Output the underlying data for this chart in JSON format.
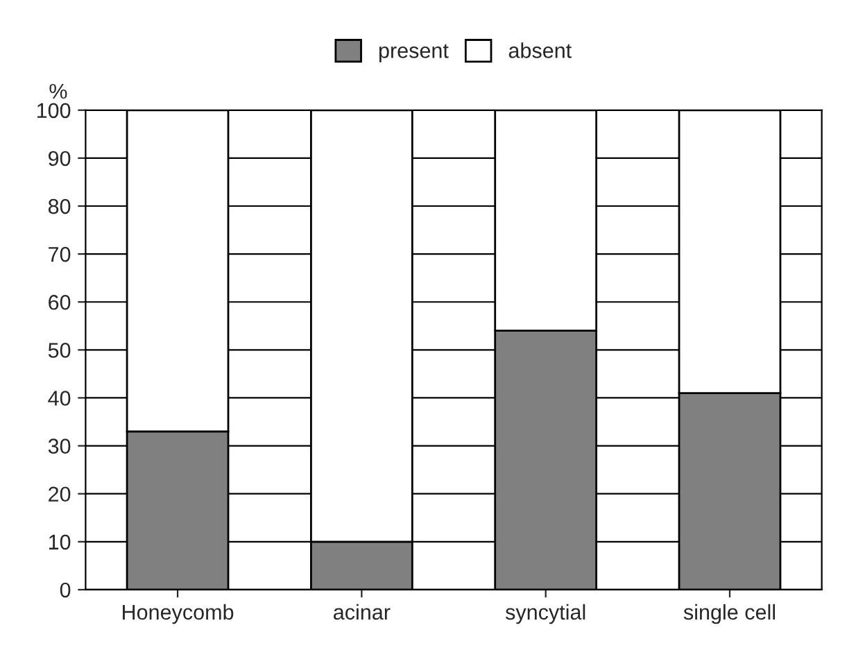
{
  "chart_data": {
    "type": "bar",
    "stacked": true,
    "ylabel": "%",
    "categories": [
      "Honeycomb",
      "acinar",
      "syncytial",
      "single cell"
    ],
    "series": [
      {
        "name": "present",
        "color": "#808080",
        "values": [
          33,
          10,
          54,
          41
        ]
      },
      {
        "name": "absent",
        "color": "#ffffff",
        "values": [
          67,
          90,
          46,
          59
        ]
      }
    ],
    "ylim": [
      0,
      100
    ],
    "yticks": [
      0,
      10,
      20,
      30,
      40,
      50,
      60,
      70,
      80,
      90,
      100
    ],
    "grid": "y",
    "legend": "top"
  }
}
